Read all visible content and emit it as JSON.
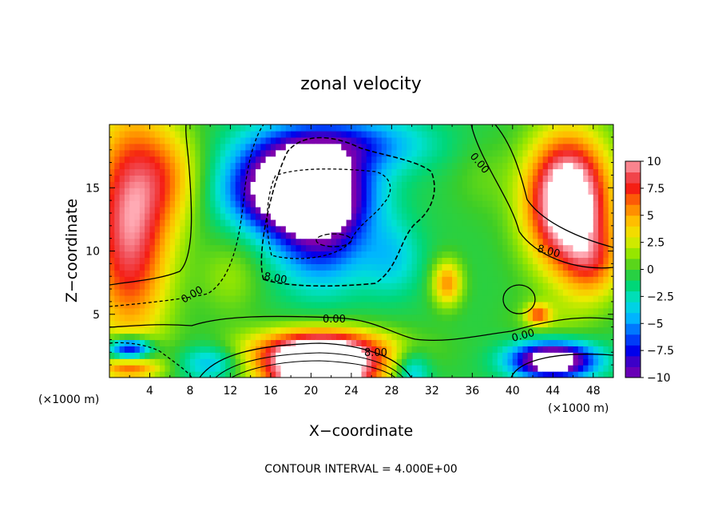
{
  "chart_data": {
    "type": "heatmap",
    "title": "zonal velocity",
    "xlabel": "X−coordinate",
    "ylabel": "Z−coordinate",
    "x_units_left": "(×1000 m)",
    "x_units_right": "(×1000 m)",
    "xlim": [
      0,
      50
    ],
    "ylim": [
      0,
      20
    ],
    "x_ticks": [
      "4",
      "8",
      "12",
      "16",
      "20",
      "24",
      "28",
      "32",
      "36",
      "40",
      "44",
      "48"
    ],
    "y_ticks": [
      "5",
      "10",
      "15"
    ],
    "colorbar": {
      "range": [
        -10,
        10
      ],
      "labels": [
        "10",
        "7.5",
        "5",
        "2.5",
        "0",
        "−2.5",
        "−5",
        "−7.5",
        "−10"
      ]
    },
    "contour_labels": [
      "0.00",
      "0.00",
      "0.00",
      "0.00",
      "8.00",
      "8.00",
      "8.00",
      "8.00"
    ],
    "footer": "CONTOUR INTERVAL = 4.000E+00"
  }
}
